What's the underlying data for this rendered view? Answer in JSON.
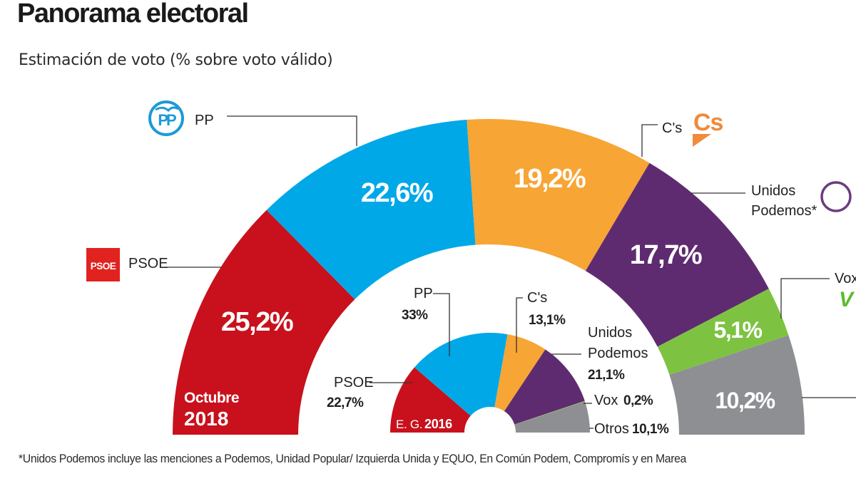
{
  "header": {
    "title": "Panorama electoral",
    "subtitle": "Estimación de voto (% sobre voto válido)"
  },
  "footnote": "*Unidos Podemos incluye las menciones a Podemos, Unidad Popular/ Izquierda Unida y EQUO, En Común Podem, Compromís y en Marea",
  "chart_data": [
    {
      "type": "pie",
      "subtype": "hemicycle",
      "title": "Octubre 2018",
      "title_parts": [
        "Octubre",
        "2018"
      ],
      "categories": [
        "PSOE",
        "PP",
        "C's",
        "Unidos Podemos*",
        "Vox",
        "Otros"
      ],
      "values": [
        25.2,
        22.6,
        19.2,
        17.7,
        5.1,
        10.2
      ],
      "value_labels": [
        "25,2%",
        "22,6%",
        "19,2%",
        "17,7%",
        "5,1%",
        "10,2%"
      ],
      "legend_labels": [
        "PSOE",
        "PP",
        "C's",
        "Unidos Podemos*",
        "Vox",
        ""
      ],
      "colors": [
        "#c8111c",
        "#00a8e8",
        "#f7a534",
        "#5f2b70",
        "#7ec242",
        "#8e8f93"
      ],
      "unit": "%"
    },
    {
      "type": "pie",
      "subtype": "hemicycle",
      "title": "E. G. 2016",
      "title_parts": [
        "E. G.",
        "2016"
      ],
      "categories": [
        "PSOE",
        "PP",
        "C's",
        "Unidos Podemos",
        "Vox",
        "Otros"
      ],
      "values": [
        22.7,
        33.0,
        13.1,
        21.1,
        0.2,
        10.1
      ],
      "value_labels": [
        "22,7%",
        "33%",
        "13,1%",
        "21,1%",
        "0,2%",
        "10,1%"
      ],
      "colors": [
        "#c8111c",
        "#00a8e8",
        "#f7a534",
        "#5f2b70",
        "#7ec242",
        "#8e8f93"
      ],
      "unit": "%"
    }
  ],
  "logos": {
    "pp": {
      "text": "PP",
      "color": "#1d9ad6"
    },
    "psoe": {
      "text": "PSOE",
      "color": "#e1231f"
    },
    "cs": {
      "text": "Cs",
      "color": "#f08a3c"
    },
    "podemos": {
      "color": "#6b3d7c"
    },
    "vox": {
      "text": "V",
      "color": "#5bbc2e"
    }
  },
  "small_labels": {
    "unidos": "Unidos",
    "podemos": "Podemos",
    "podemos_star": "Podemos*",
    "vox_prefix": "Vox",
    "otros_prefix": "Otros"
  }
}
